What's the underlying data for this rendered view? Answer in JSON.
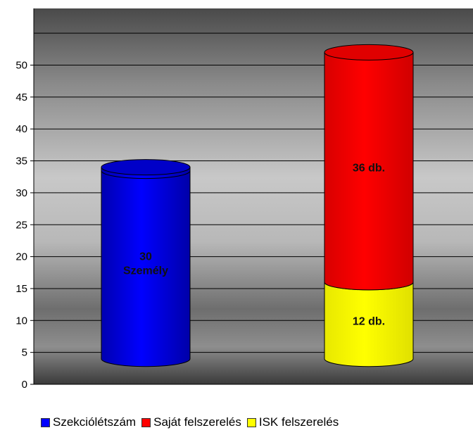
{
  "chart_data": {
    "type": "bar",
    "style": "3d-cylinder",
    "ylim": [
      0,
      55
    ],
    "yticks": [
      0,
      5,
      10,
      15,
      20,
      25,
      30,
      35,
      40,
      45,
      50
    ],
    "grid": true,
    "legend_position": "bottom",
    "bars": [
      {
        "segments": [
          {
            "series": "Szekciólétszám",
            "value": 30,
            "label": [
              "30",
              "Személy"
            ]
          }
        ]
      },
      {
        "segments": [
          {
            "series": "ISK felszerelés",
            "value": 12,
            "label": [
              "12 db."
            ]
          },
          {
            "series": "Saját felszerelés",
            "value": 36,
            "label": [
              "36 db."
            ]
          }
        ]
      }
    ],
    "series": [
      {
        "name": "Szekciólétszám",
        "color": "#0000ff"
      },
      {
        "name": "Saját felszerelés",
        "color": "#ff0000"
      },
      {
        "name": "ISK felszerelés",
        "color": "#ffff00"
      }
    ]
  },
  "legend": {
    "items": [
      {
        "label": "Szekciólétszám",
        "color": "#0000ff"
      },
      {
        "label": "Saját felszerelés",
        "color": "#ff0000"
      },
      {
        "label": "ISK felszerelés",
        "color": "#ffff00"
      }
    ]
  }
}
